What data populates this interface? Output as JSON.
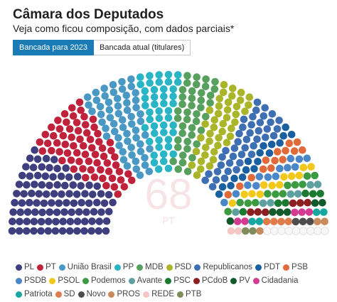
{
  "header": {
    "title": "Câmara dos Deputados",
    "subtitle": "Veja como ficou composição, com dados parciais*"
  },
  "toggle": {
    "options": [
      "Bancada para 2023",
      "Bancada atual (titulares)"
    ],
    "active_index": 0
  },
  "center": {
    "value": "68",
    "label": "PT"
  },
  "chart_data": {
    "type": "parliament",
    "title": "Câmara dos Deputados",
    "highlighted_party": "PT",
    "highlighted_value": 68,
    "series": [
      {
        "name": "PL",
        "value": 99,
        "color": "#3f3f7f"
      },
      {
        "name": "PT",
        "value": 68,
        "color": "#c0213b"
      },
      {
        "name": "União Brasil",
        "value": 59,
        "color": "#4a99c4"
      },
      {
        "name": "PP",
        "value": 47,
        "color": "#29b5c5"
      },
      {
        "name": "MDB",
        "value": 42,
        "color": "#57a05d"
      },
      {
        "name": "PSD",
        "value": 42,
        "color": "#aab52a"
      },
      {
        "name": "Republicanos",
        "value": 41,
        "color": "#3e6fb2"
      },
      {
        "name": "PDT",
        "value": 17,
        "color": "#1a5fa0"
      },
      {
        "name": "PSB",
        "value": 14,
        "color": "#e06a3a"
      },
      {
        "name": "PSDB",
        "value": 13,
        "color": "#4a86c8"
      },
      {
        "name": "PSOL",
        "value": 12,
        "color": "#f2c81b"
      },
      {
        "name": "Podemos",
        "value": 12,
        "color": "#3c9b41"
      },
      {
        "name": "Avante",
        "value": 7,
        "color": "#5e9fa0"
      },
      {
        "name": "PSC",
        "value": 6,
        "color": "#1a7a2f"
      },
      {
        "name": "PCdoB",
        "value": 6,
        "color": "#8c1f22"
      },
      {
        "name": "PV",
        "value": 6,
        "color": "#12592b"
      },
      {
        "name": "Cidadania",
        "value": 5,
        "color": "#d43a8f"
      },
      {
        "name": "Patriota",
        "value": 4,
        "color": "#16a7a1"
      },
      {
        "name": "SD",
        "value": 4,
        "color": "#e07c4c"
      },
      {
        "name": "Novo",
        "value": 3,
        "color": "#4d4d4d"
      },
      {
        "name": "PROS",
        "value": 3,
        "color": "#c98a5d"
      },
      {
        "name": "REDE",
        "value": 2,
        "color": "#f4c6c6"
      },
      {
        "name": "PTB",
        "value": 2,
        "color": "#7d8c5a"
      }
    ],
    "unassigned": {
      "value": 9,
      "color": "#f7f7f7"
    }
  }
}
